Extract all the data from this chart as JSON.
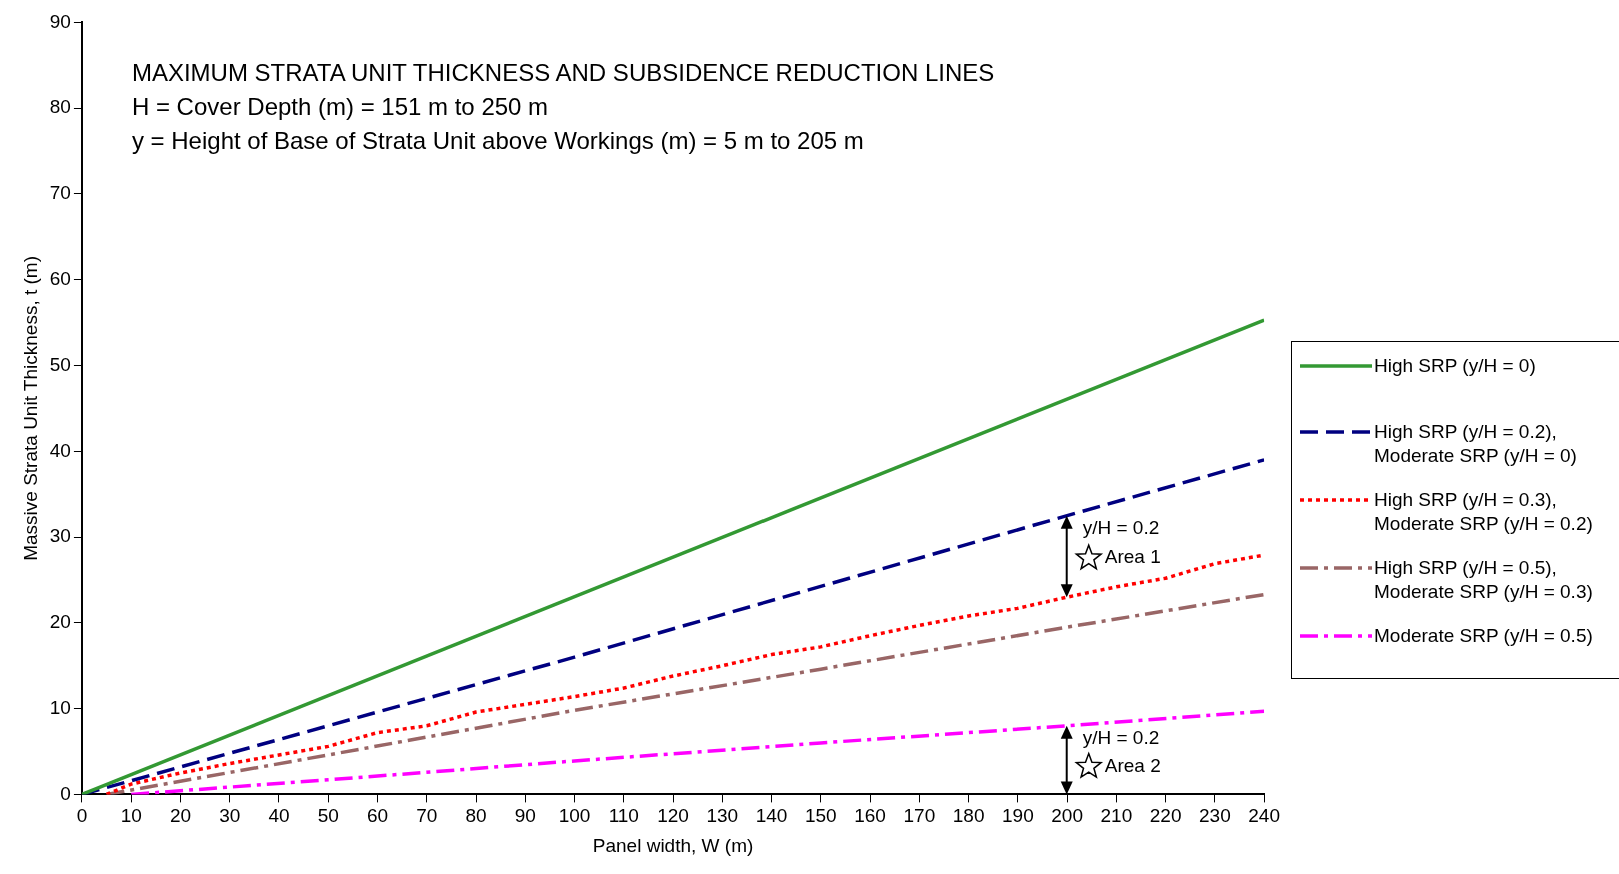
{
  "chart_data": {
    "type": "line",
    "title": "MAXIMUM STRATA UNIT THICKNESS AND SUBSIDENCE REDUCTION LINES",
    "subtitle": "H = Cover Depth (m) = 151 m to 250 m\ny = Height of Base of Strata Unit above Workings (m) = 5 m to 205 m",
    "xlabel": "Panel width, W (m)",
    "ylabel": "Massive Strata Unit Thickness, t (m)",
    "xlim": [
      0,
      240
    ],
    "xticks": [
      0,
      10,
      20,
      30,
      40,
      50,
      60,
      70,
      80,
      90,
      100,
      110,
      120,
      130,
      140,
      150,
      160,
      170,
      180,
      190,
      200,
      210,
      220,
      230,
      240
    ],
    "ylim": [
      0,
      90
    ],
    "yticks": [
      0,
      10,
      20,
      30,
      40,
      50,
      60,
      70,
      80,
      90
    ],
    "grid": false,
    "legend": "right",
    "marker": "none",
    "series": [
      {
        "name": "High SRP (y/H = 0)",
        "color": "#339933",
        "line_style": "solid",
        "x": [
          0,
          240
        ],
        "values": [
          0,
          55.3
        ]
      },
      {
        "name": "High SRP (y/H = 0.2), Moderate SRP (y/H = 0)",
        "color": "#000080",
        "line_style": "dashed",
        "x": [
          0,
          100,
          200,
          240
        ],
        "values": [
          0,
          16.0,
          32.5,
          39.0
        ]
      },
      {
        "name": "High SRP (y/H = 0.3), Moderate SRP (y/H = 0.2)",
        "color": "#ff0000",
        "line_style": "dotted",
        "x": [
          5,
          10,
          20,
          30,
          40,
          50,
          60,
          70,
          80,
          90,
          100,
          110,
          120,
          130,
          140,
          150,
          160,
          170,
          180,
          190,
          200,
          210,
          220,
          230,
          240
        ],
        "values": [
          0,
          1.2,
          2.5,
          3.6,
          4.6,
          5.6,
          7.2,
          8.0,
          9.6,
          10.5,
          11.4,
          12.4,
          13.8,
          15.0,
          16.3,
          17.2,
          18.5,
          19.7,
          20.8,
          21.7,
          23.0,
          24.2,
          25.2,
          26.9,
          27.9
        ]
      },
      {
        "name": "High SRP (y/H = 0.5), Moderate SRP (y/H = 0.3)",
        "color": "#996666",
        "line_style": "dashdot",
        "x": [
          5,
          50,
          100,
          150,
          200,
          240
        ],
        "values": [
          0,
          4.6,
          9.8,
          14.6,
          19.5,
          23.3
        ]
      },
      {
        "name": "Moderate SRP (y/H = 0.5)",
        "color": "#ff00ff",
        "line_style": "dashdot",
        "x": [
          10,
          50,
          100,
          150,
          200,
          240
        ],
        "values": [
          0,
          1.7,
          3.9,
          6.0,
          8.0,
          9.7
        ]
      }
    ],
    "annotations": [
      "y/H = 0.2",
      "Area 1",
      "y/H = 0.2",
      "Area 2"
    ]
  }
}
